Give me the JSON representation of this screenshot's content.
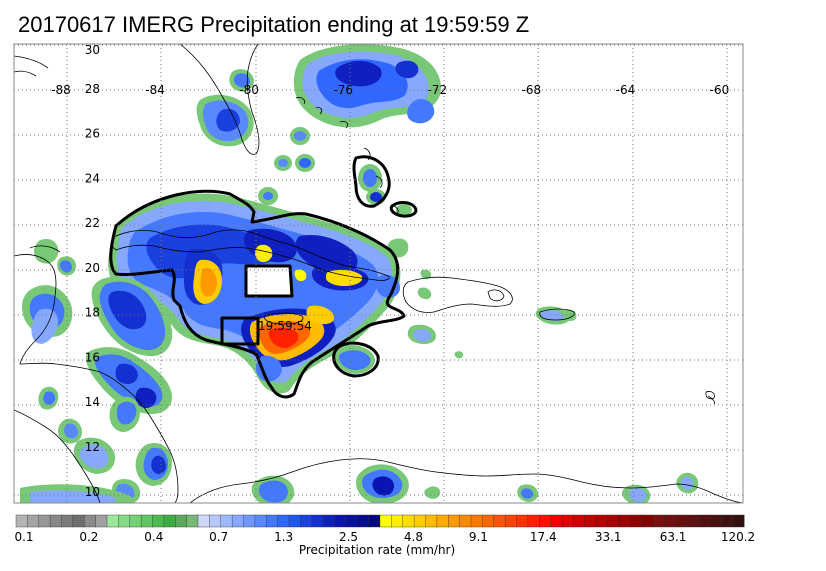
{
  "title": "20170617 IMERG Precipitation ending at 19:59:59 Z",
  "map": {
    "lon_range": [
      -90,
      -59
    ],
    "lat_range": [
      9.5,
      30
    ],
    "lon_ticks": [
      "-88",
      "-84",
      "-80",
      "-76",
      "-72",
      "-68",
      "-64",
      "-60"
    ],
    "lat_ticks": [
      "30",
      "28",
      "26",
      "24",
      "22",
      "20",
      "18",
      "16",
      "14",
      "12",
      "10"
    ],
    "lon_tick_values": [
      -88,
      -84,
      -80,
      -76,
      -72,
      -68,
      -64,
      -60
    ],
    "lat_tick_values": [
      30,
      28,
      26,
      24,
      22,
      20,
      18,
      16,
      14,
      12,
      10
    ],
    "grid": "dotted",
    "time_stamp": "19:59:54"
  },
  "colorbar": {
    "title": "Precipitation rate (mm/hr)",
    "labels": [
      "0.1",
      "0.2",
      "0.4",
      "0.7",
      "1.3",
      "2.5",
      "4.8",
      "9.1",
      "17.4",
      "33.1",
      "63.1",
      "120.2"
    ],
    "colors": [
      "#b4b4b4",
      "#a4a4a4",
      "#969696",
      "#888888",
      "#7a7a7a",
      "#6e6e6e",
      "#8c8c8c",
      "#a0a0a0",
      "#9be89b",
      "#86dc86",
      "#74d074",
      "#62c462",
      "#50b850",
      "#40ac40",
      "#5aa85a",
      "#78b878",
      "#cfd7ff",
      "#b4c8ff",
      "#9cb8ff",
      "#86a8ff",
      "#7098ff",
      "#5a88ff",
      "#4478ff",
      "#3068ff",
      "#1f55f0",
      "#1a40e0",
      "#1530d0",
      "#1020c0",
      "#0a14b0",
      "#0810a0",
      "#060c90",
      "#040880",
      "#ffff00",
      "#ffee00",
      "#ffdd00",
      "#ffcc00",
      "#ffbb00",
      "#ffaa00",
      "#ff9900",
      "#ff8800",
      "#ff7700",
      "#ff6600",
      "#ff5500",
      "#ff4400",
      "#ff3300",
      "#ff2200",
      "#ff1100",
      "#f00000",
      "#e00000",
      "#d00000",
      "#c00000",
      "#b40000",
      "#a80000",
      "#9c0000",
      "#900000",
      "#840000",
      "#7a1010",
      "#701010",
      "#661010",
      "#5c1010",
      "#521010",
      "#481010",
      "#3e1010",
      "#341010"
    ]
  }
}
